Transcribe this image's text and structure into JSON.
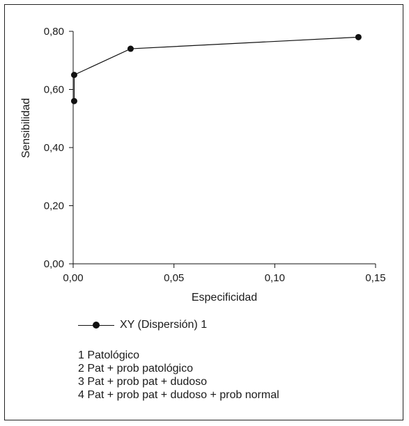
{
  "chart_data": {
    "type": "scatter",
    "xlabel": "Especificidad",
    "ylabel": "Sensibilidad",
    "xlim": [
      0,
      0.15
    ],
    "ylim": [
      0,
      0.8
    ],
    "x_ticks": [
      "0,00",
      "0,05",
      "0,10",
      "0,15"
    ],
    "x_tick_values": [
      0,
      0.05,
      0.1,
      0.15
    ],
    "y_ticks": [
      "0,00",
      "0,20",
      "0,40",
      "0,60",
      "0,80"
    ],
    "y_tick_values": [
      0,
      0.2,
      0.4,
      0.6,
      0.8
    ],
    "grid": false,
    "lines_connected": true,
    "series": [
      {
        "name": "XY (Dispersión) 1",
        "points": [
          {
            "x": 0.0005,
            "y": 0.56
          },
          {
            "x": 0.0005,
            "y": 0.65
          },
          {
            "x": 0.0285,
            "y": 0.74
          },
          {
            "x": 0.1415,
            "y": 0.78
          }
        ]
      }
    ],
    "legend_placement": "bottom-left",
    "notes": [
      "1 Patológico",
      "2 Pat + prob patológico",
      "3 Pat + prob pat + dudoso",
      "4 Pat + prob pat + dudoso + prob normal"
    ]
  },
  "colors": {
    "line": "#111111",
    "marker": "#111111",
    "axis": "#111111"
  }
}
